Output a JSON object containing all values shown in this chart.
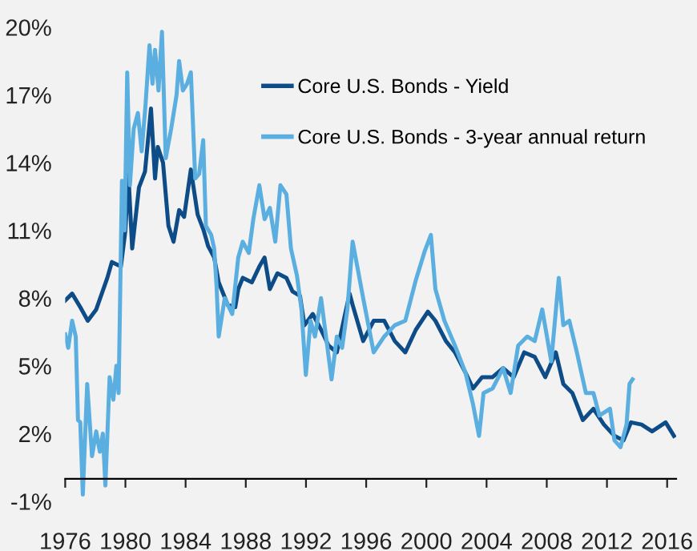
{
  "chart_data": {
    "type": "line",
    "series": [
      {
        "name": "Core U.S. Bonds - Yield",
        "color": "#0e4c87",
        "x": [
          1976.0,
          1976.46,
          1977.0,
          1977.5,
          1978.06,
          1978.8,
          1979.1,
          1979.7,
          1980.0,
          1980.2,
          1980.45,
          1980.9,
          1981.3,
          1981.7,
          1981.97,
          1982.15,
          1982.5,
          1982.86,
          1983.2,
          1983.57,
          1983.9,
          1984.35,
          1984.8,
          1985.2,
          1985.5,
          1985.9,
          1986.2,
          1986.8,
          1987.3,
          1987.5,
          1987.8,
          1988.4,
          1988.9,
          1989.25,
          1989.6,
          1990.1,
          1990.7,
          1991.1,
          1991.6,
          1991.9,
          1992.45,
          1993.0,
          1993.5,
          1994.05,
          1994.6,
          1994.9,
          1995.1,
          1995.8,
          1996.5,
          1997.2,
          1997.9,
          1998.6,
          1999.3,
          2000.1,
          2000.6,
          2001.3,
          2001.9,
          2002.6,
          2003.1,
          2003.7,
          2004.4,
          2005.1,
          2005.8,
          2006.5,
          2007.2,
          2007.9,
          2008.6,
          2009.1,
          2009.7,
          2010.4,
          2011.1,
          2011.8,
          2012.5,
          2013.1,
          2013.6,
          2014.3,
          2015.0,
          2015.9,
          2016.45
        ],
        "values": [
          7.9,
          8.2,
          7.6,
          7.0,
          7.5,
          8.9,
          9.6,
          9.4,
          11.0,
          13.5,
          10.2,
          12.9,
          13.6,
          16.4,
          13.3,
          14.7,
          14.0,
          11.2,
          10.5,
          11.9,
          11.6,
          13.7,
          11.7,
          11.0,
          10.3,
          9.8,
          8.7,
          7.7,
          7.6,
          8.4,
          8.9,
          8.7,
          9.4,
          9.8,
          8.4,
          9.1,
          8.9,
          8.3,
          8.1,
          6.8,
          7.3,
          6.6,
          5.9,
          5.6,
          7.3,
          8.2,
          7.7,
          6.1,
          7.0,
          7.0,
          6.1,
          5.6,
          6.6,
          7.4,
          7.0,
          6.1,
          5.6,
          4.7,
          4.0,
          4.5,
          4.5,
          4.9,
          4.5,
          5.6,
          5.4,
          4.5,
          5.6,
          4.2,
          3.8,
          2.6,
          3.1,
          2.4,
          1.9,
          1.7,
          2.5,
          2.4,
          2.1,
          2.5,
          1.9
        ]
      },
      {
        "name": "Core U.S. Bonds - 3-year annual return",
        "color": "#5aaee0",
        "x": [
          1976.0,
          1976.2,
          1976.46,
          1976.7,
          1976.85,
          1977.0,
          1977.17,
          1977.46,
          1977.78,
          1978.06,
          1978.3,
          1978.5,
          1978.67,
          1978.95,
          1979.2,
          1979.4,
          1979.55,
          1979.77,
          1979.95,
          1980.12,
          1980.3,
          1980.55,
          1980.83,
          1981.08,
          1981.33,
          1981.6,
          1981.8,
          1981.97,
          1982.2,
          1982.43,
          1982.68,
          1983.04,
          1983.4,
          1983.57,
          1983.82,
          1984.1,
          1984.35,
          1984.64,
          1984.9,
          1985.17,
          1985.35,
          1985.7,
          1985.9,
          1986.06,
          1986.2,
          1986.6,
          1986.95,
          1987.1,
          1987.5,
          1987.8,
          1988.2,
          1988.5,
          1988.9,
          1989.25,
          1989.6,
          1989.96,
          1990.3,
          1990.7,
          1991.0,
          1991.4,
          1991.7,
          1991.99,
          1992.3,
          1992.6,
          1993.0,
          1993.35,
          1993.7,
          1994.05,
          1994.4,
          1994.75,
          1995.1,
          1995.8,
          1996.5,
          1997.2,
          1997.9,
          1998.6,
          1999.3,
          1999.9,
          2000.3,
          2000.6,
          2001.2,
          2001.9,
          2002.6,
          2003.1,
          2003.5,
          2003.8,
          2004.4,
          2005.1,
          2005.6,
          2006.1,
          2006.7,
          2007.2,
          2007.7,
          2008.3,
          2008.8,
          2009.1,
          2009.5,
          2010.0,
          2010.6,
          2011.1,
          2011.5,
          2012.2,
          2012.5,
          2012.9,
          2013.3,
          2013.5,
          2013.7
        ],
        "values": [
          6.4,
          5.8,
          7.0,
          6.3,
          2.6,
          2.5,
          -0.7,
          4.2,
          1.0,
          2.1,
          1.2,
          2.0,
          -0.3,
          4.5,
          3.5,
          5.0,
          3.8,
          13.2,
          11.0,
          18.0,
          13.0,
          15.5,
          16.2,
          14.5,
          16.5,
          19.2,
          17.5,
          19.0,
          17.2,
          19.8,
          14.2,
          15.5,
          17.0,
          18.5,
          17.2,
          17.5,
          18.0,
          13.3,
          13.5,
          15.0,
          11.2,
          10.8,
          10.2,
          8.5,
          6.3,
          8.0,
          7.5,
          7.3,
          9.8,
          10.5,
          10.0,
          11.5,
          13.0,
          11.5,
          12.0,
          10.5,
          13.0,
          12.6,
          10.2,
          9.0,
          7.5,
          4.6,
          7.0,
          6.3,
          8.0,
          6.2,
          4.4,
          6.3,
          5.8,
          7.5,
          10.5,
          8.0,
          5.6,
          6.3,
          6.8,
          7.0,
          8.8,
          10.1,
          10.8,
          8.4,
          7.0,
          5.9,
          4.7,
          3.3,
          1.9,
          3.8,
          4.0,
          4.9,
          3.8,
          5.9,
          6.3,
          6.1,
          7.5,
          5.2,
          8.9,
          6.8,
          7.0,
          5.6,
          3.8,
          3.8,
          2.8,
          3.1,
          1.7,
          1.4,
          2.4,
          4.2,
          4.4
        ]
      }
    ],
    "xlim": [
      1976,
      2016.6
    ],
    "xticks": [
      1976,
      1980,
      1984,
      1988,
      1992,
      1996,
      2000,
      2004,
      2008,
      2012,
      2016
    ],
    "ylim": [
      -1,
      20
    ],
    "yticks": [
      {
        "value": -1,
        "label": "-1%"
      },
      {
        "value": 2,
        "label": "2%"
      },
      {
        "value": 5,
        "label": "5%"
      },
      {
        "value": 8,
        "label": "8%"
      },
      {
        "value": 11,
        "label": "11%"
      },
      {
        "value": 14,
        "label": "14%"
      },
      {
        "value": 17,
        "label": "17%"
      },
      {
        "value": 20,
        "label": "20%"
      }
    ],
    "legend": "top right",
    "grid": false,
    "line_style": "solid"
  }
}
